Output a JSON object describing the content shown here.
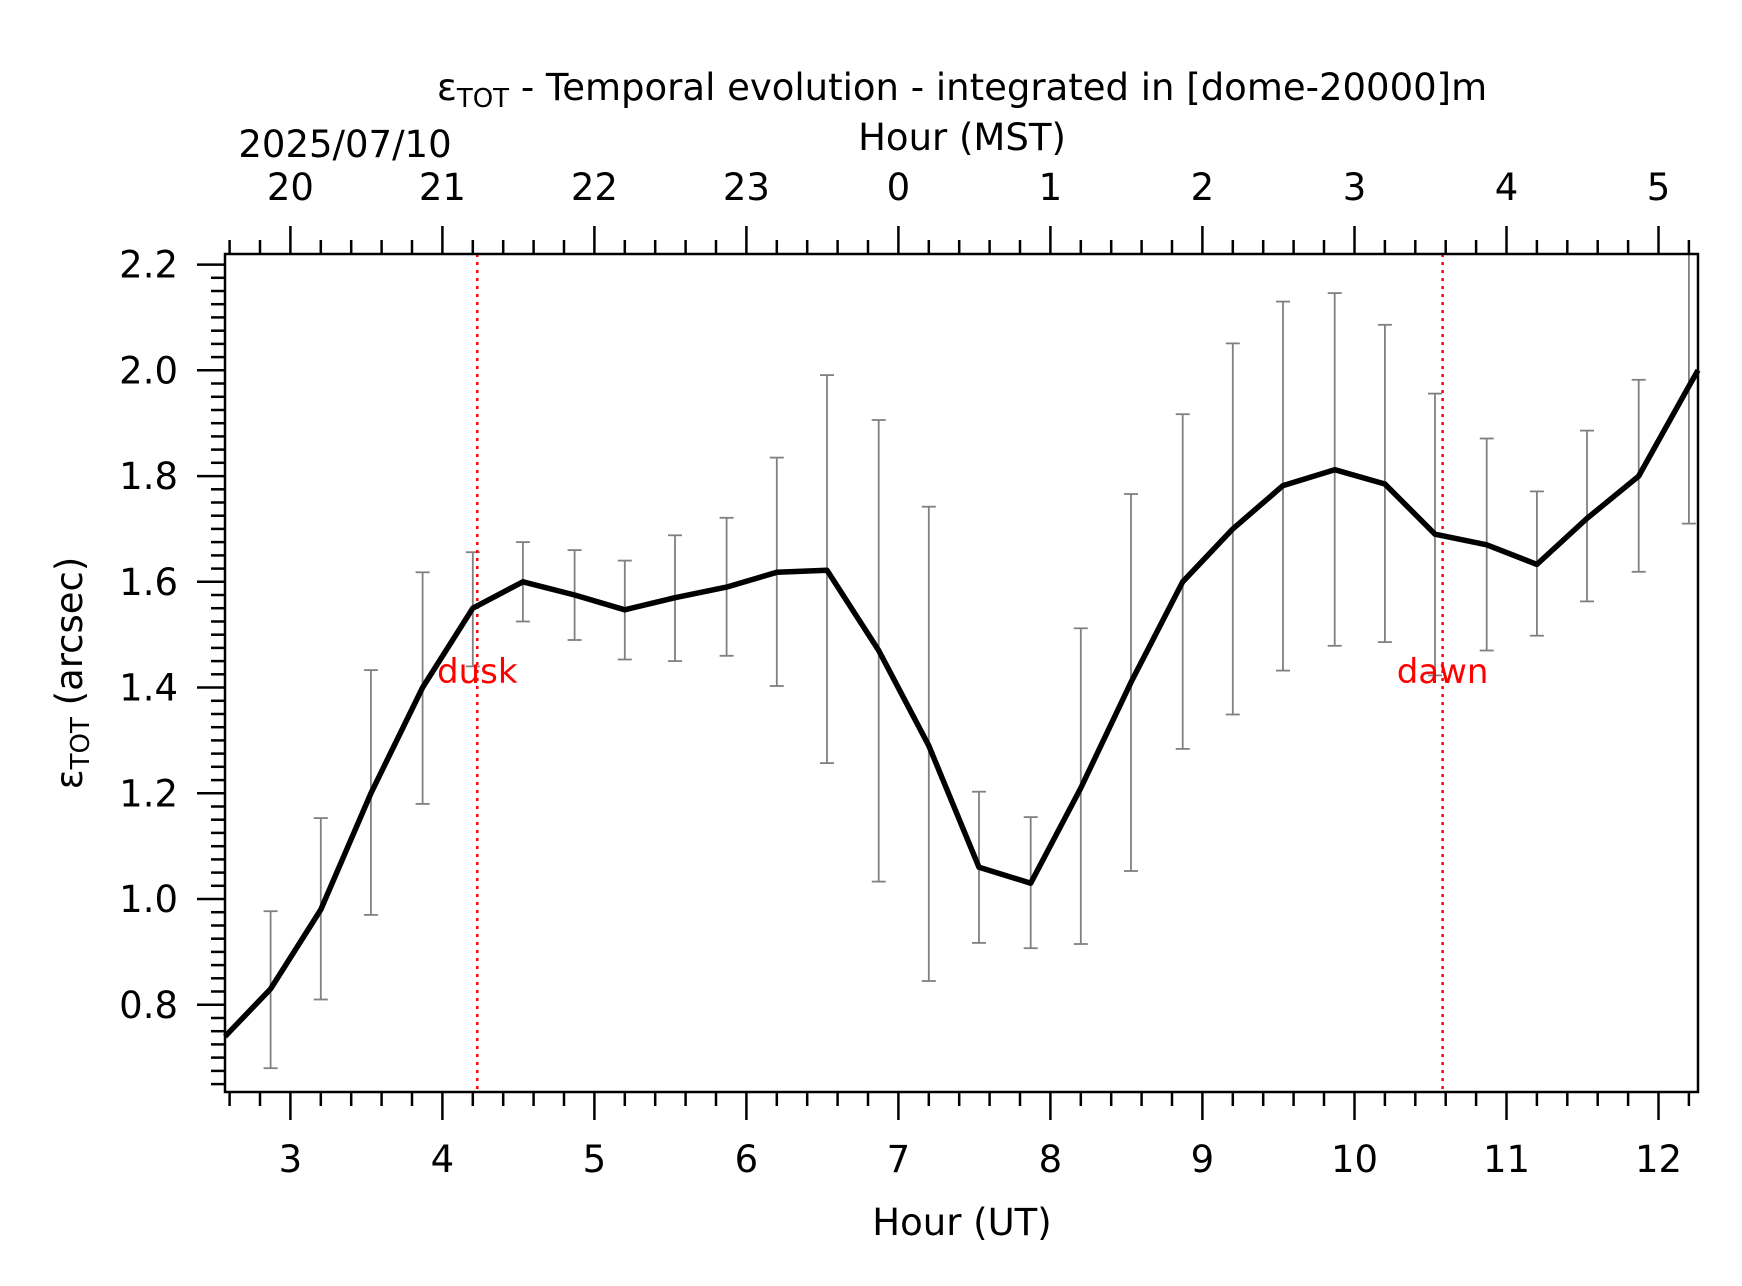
{
  "chart_data": {
    "type": "line",
    "title_prefix": "ε",
    "title_sub": "TOT",
    "title_rest": " - Temporal evolution - integrated in [dome-20000]m",
    "date_label": "2025/07/10",
    "xlabel": "Hour (UT)",
    "x2label": "Hour (MST)",
    "ylabel_prefix": "ε",
    "ylabel_sub": "TOT",
    "ylabel_rest": " (arcsec)",
    "xlim": [
      2.57,
      12.26
    ],
    "ylim": [
      0.635,
      2.22
    ],
    "x_ticks": [
      3,
      4,
      5,
      6,
      7,
      8,
      9,
      10,
      11,
      12
    ],
    "x_tick_labels": [
      "3",
      "4",
      "5",
      "6",
      "7",
      "8",
      "9",
      "10",
      "11",
      "12"
    ],
    "y_ticks": [
      0.8,
      1.0,
      1.2,
      1.4,
      1.6,
      1.8,
      2.0,
      2.2
    ],
    "y_tick_labels": [
      "0.8",
      "1.0",
      "1.2",
      "1.4",
      "1.6",
      "1.8",
      "2.0",
      "2.2"
    ],
    "x2_ticks_ut": [
      3,
      4,
      5,
      6,
      7,
      8,
      9,
      10,
      11,
      12
    ],
    "x2_tick_labels": [
      "20",
      "21",
      "22",
      "23",
      "0",
      "1",
      "2",
      "3",
      "4",
      "5"
    ],
    "grid": false,
    "series": [
      {
        "color": "#000000",
        "x": [
          2.57,
          2.87,
          3.2,
          3.53,
          3.87,
          4.2,
          4.53,
          4.87,
          5.2,
          5.53,
          5.87,
          6.2,
          6.53,
          6.87,
          7.2,
          7.53,
          7.87,
          8.2,
          8.53,
          8.87,
          9.2,
          9.53,
          9.87,
          10.2,
          10.53,
          10.87,
          11.2,
          11.53,
          11.87,
          12.2,
          12.26
        ],
        "y": [
          0.74,
          0.83,
          0.98,
          1.2,
          1.4,
          1.55,
          1.6,
          1.575,
          1.547,
          1.57,
          1.59,
          1.618,
          1.622,
          1.47,
          1.29,
          1.06,
          1.03,
          1.21,
          1.41,
          1.6,
          1.7,
          1.782,
          1.812,
          1.785,
          1.69,
          1.67,
          1.633,
          1.72,
          1.8,
          1.97,
          2.0
        ]
      }
    ],
    "error_bars": {
      "color": "#808080",
      "x": [
        2.87,
        3.2,
        3.53,
        3.87,
        4.2,
        4.53,
        4.87,
        5.2,
        5.53,
        5.87,
        6.2,
        6.53,
        6.87,
        7.2,
        7.53,
        7.87,
        8.2,
        8.53,
        8.87,
        9.2,
        9.53,
        9.87,
        10.2,
        10.53,
        10.87,
        11.2,
        11.53,
        11.87,
        12.2
      ],
      "low": [
        0.68,
        0.81,
        0.97,
        1.18,
        1.44,
        1.525,
        1.49,
        1.453,
        1.45,
        1.46,
        1.403,
        1.257,
        1.033,
        0.845,
        0.917,
        0.907,
        0.915,
        1.053,
        1.284,
        1.349,
        1.432,
        1.479,
        1.486,
        1.423,
        1.47,
        1.498,
        1.563,
        1.619,
        1.71
      ],
      "high": [
        0.977,
        1.153,
        1.433,
        1.618,
        1.656,
        1.675,
        1.66,
        1.64,
        1.688,
        1.721,
        1.835,
        1.991,
        1.906,
        1.742,
        1.203,
        1.155,
        1.512,
        1.766,
        1.917,
        2.051,
        2.13,
        2.146,
        2.086,
        1.956,
        1.871,
        1.771,
        1.886,
        1.982,
        2.22
      ]
    },
    "vlines": [
      {
        "x": 4.23,
        "label": "dusk",
        "color": "#ff0000"
      },
      {
        "x": 10.58,
        "label": "dawn",
        "color": "#ff0000"
      }
    ]
  }
}
